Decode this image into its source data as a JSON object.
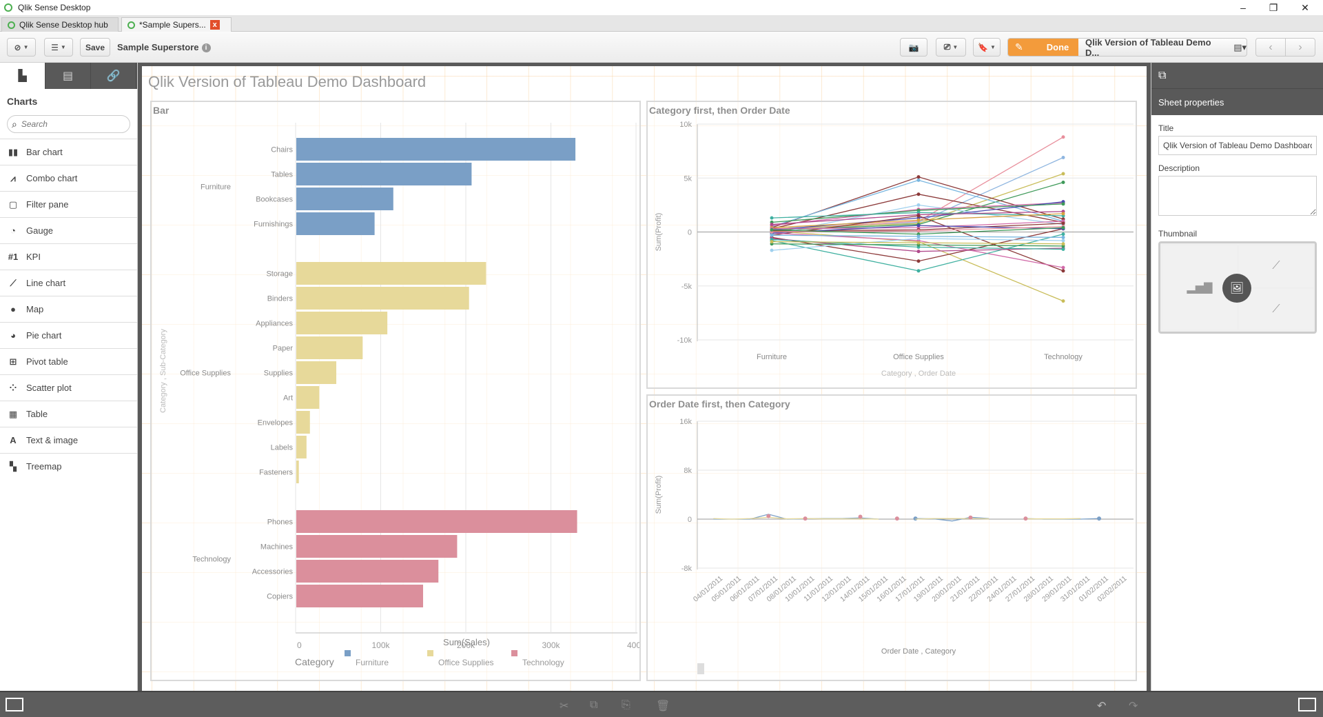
{
  "window": {
    "title": "Qlik Sense Desktop",
    "controls": {
      "minimize": "–",
      "restore": "❐",
      "close": "✕"
    }
  },
  "tabs": [
    {
      "label": "Qlik Sense Desktop hub",
      "active": false
    },
    {
      "label": "*Sample Supers...",
      "active": true,
      "close": "x"
    }
  ],
  "toolbar": {
    "navigation_icon": "compass-icon",
    "list_icon": "list-icon",
    "save_label": "Save",
    "app_name": "Sample Superstore",
    "info": "i",
    "snapshot_icon": "camera-icon",
    "present_icon": "presentation-icon",
    "bookmark_icon": "bookmark-icon",
    "done_label": "Done",
    "sheet_name": "Qlik Version of Tableau Demo D...",
    "prev": "‹",
    "next": "›"
  },
  "left_panel": {
    "tabs": [
      "charts-tab",
      "fields-tab",
      "master-items-tab"
    ],
    "heading": "Charts",
    "search_placeholder": "Search",
    "items": [
      {
        "label": "Bar chart",
        "icon": "▮▮"
      },
      {
        "label": "Combo chart",
        "icon": "⩘"
      },
      {
        "label": "Filter pane",
        "icon": "▢"
      },
      {
        "label": "Gauge",
        "icon": "◔"
      },
      {
        "label": "KPI",
        "icon": "#1"
      },
      {
        "label": "Line chart",
        "icon": "⟋"
      },
      {
        "label": "Map",
        "icon": "●"
      },
      {
        "label": "Pie chart",
        "icon": "◕"
      },
      {
        "label": "Pivot table",
        "icon": "⊞"
      },
      {
        "label": "Scatter plot",
        "icon": "⁘"
      },
      {
        "label": "Table",
        "icon": "▦"
      },
      {
        "label": "Text & image",
        "icon": "A"
      },
      {
        "label": "Treemap",
        "icon": "▚"
      }
    ]
  },
  "sheet": {
    "title": "Qlik Version of Tableau Demo Dashboard"
  },
  "right_panel": {
    "header": "Sheet properties",
    "title_label": "Title",
    "title_value": "Qlik Version of Tableau Demo Dashboard",
    "description_label": "Description",
    "description_value": "",
    "thumbnail_label": "Thumbnail"
  },
  "colors": {
    "furniture": "#7a9fc6",
    "office_supplies": "#e7d99a",
    "technology": "#db8f9c",
    "done": "#f39b3b",
    "panel_dark": "#595959"
  },
  "chart_data": [
    {
      "type": "bar",
      "title": "Bar",
      "orientation": "horizontal",
      "xlabel": "Sum(Sales)",
      "ylabel": "Category , Sub-Category",
      "xlim": [
        0,
        400000
      ],
      "xticks": [
        "0",
        "100k",
        "200k",
        "300k",
        "400k"
      ],
      "legend": {
        "title": "Category",
        "position": "bottom",
        "entries": [
          "Furniture",
          "Office Supplies",
          "Technology"
        ]
      },
      "groups": [
        {
          "category": "Furniture",
          "color": "#7a9fc6",
          "bars": [
            {
              "label": "Chairs",
              "value": 328000
            },
            {
              "label": "Tables",
              "value": 206000
            },
            {
              "label": "Bookcases",
              "value": 114000
            },
            {
              "label": "Furnishings",
              "value": 92000
            }
          ]
        },
        {
          "category": "Office Supplies",
          "color": "#e7d99a",
          "bars": [
            {
              "label": "Storage",
              "value": 223000
            },
            {
              "label": "Binders",
              "value": 203000
            },
            {
              "label": "Appliances",
              "value": 107000
            },
            {
              "label": "Paper",
              "value": 78000
            },
            {
              "label": "Supplies",
              "value": 47000
            },
            {
              "label": "Art",
              "value": 27000
            },
            {
              "label": "Envelopes",
              "value": 16000
            },
            {
              "label": "Labels",
              "value": 12000
            },
            {
              "label": "Fasteners",
              "value": 3000
            }
          ]
        },
        {
          "category": "Technology",
          "color": "#db8f9c",
          "bars": [
            {
              "label": "Phones",
              "value": 330000
            },
            {
              "label": "Machines",
              "value": 189000
            },
            {
              "label": "Accessories",
              "value": 167000
            },
            {
              "label": "Copiers",
              "value": 149000
            }
          ]
        }
      ]
    },
    {
      "type": "line",
      "title": "Category first, then Order Date",
      "xlabel": "Category , Order Date",
      "ylabel": "Sum(Profit)",
      "categories": [
        "Furniture",
        "Office Supplies",
        "Technology"
      ],
      "ylim": [
        -10000,
        10000
      ],
      "yticks": [
        "10k",
        "5k",
        "0",
        "-5k",
        "-10k"
      ],
      "series": [
        {
          "color": "#e88f9c",
          "values": [
            200,
            1000,
            8800
          ]
        },
        {
          "color": "#8fb6e0",
          "values": [
            100,
            900,
            6900
          ]
        },
        {
          "color": "#c9bd5a",
          "values": [
            300,
            800,
            5400
          ]
        },
        {
          "color": "#3f9a5a",
          "values": [
            150,
            700,
            4600
          ]
        },
        {
          "color": "#8c3a3a",
          "values": [
            400,
            5100,
            1200
          ]
        },
        {
          "color": "#78b6e0",
          "values": [
            500,
            4800,
            1000
          ]
        },
        {
          "color": "#8c3a3a",
          "values": [
            300,
            3500,
            900
          ]
        },
        {
          "color": "#9fd0ee",
          "values": [
            -200,
            2500,
            700
          ]
        },
        {
          "color": "#d16aa8",
          "values": [
            600,
            2100,
            2700
          ]
        },
        {
          "color": "#4a4ab0",
          "values": [
            200,
            1300,
            2800
          ]
        },
        {
          "color": "#3f9a5a",
          "values": [
            900,
            2000,
            2600
          ]
        },
        {
          "color": "#3fb0a0",
          "values": [
            1300,
            1800,
            1500
          ]
        },
        {
          "color": "#b04a8c",
          "values": [
            700,
            1600,
            1900
          ]
        },
        {
          "color": "#d8a040",
          "values": [
            400,
            1100,
            1700
          ]
        },
        {
          "color": "#8c3a3a",
          "values": [
            -300,
            1500,
            -3600
          ]
        },
        {
          "color": "#c9bd5a",
          "values": [
            100,
            -900,
            -6400
          ]
        },
        {
          "color": "#d16aa8",
          "values": [
            -100,
            -800,
            -3300
          ]
        },
        {
          "color": "#3fb0a0",
          "values": [
            -800,
            -3600,
            -200
          ]
        },
        {
          "color": "#8c3a3a",
          "values": [
            -500,
            -2700,
            300
          ]
        },
        {
          "color": "#b04a8c",
          "values": [
            -600,
            -1800,
            -1500
          ]
        },
        {
          "color": "#3fb0a0",
          "values": [
            -700,
            -1400,
            -1600
          ]
        },
        {
          "color": "#9fd0ee",
          "values": [
            -1700,
            -600,
            -800
          ]
        },
        {
          "color": "#3f9a5a",
          "values": [
            -1100,
            -1200,
            -1300
          ]
        },
        {
          "color": "#c9bd5a",
          "values": [
            -900,
            -1000,
            -1100
          ]
        },
        {
          "color": "#d16aa8",
          "values": [
            300,
            400,
            1000
          ]
        },
        {
          "color": "#8c3a3a",
          "values": [
            100,
            200,
            800
          ]
        },
        {
          "color": "#4a4ab0",
          "values": [
            -100,
            600,
            300
          ]
        },
        {
          "color": "#e88f9c",
          "values": [
            0,
            100,
            500
          ]
        },
        {
          "color": "#3f9a5a",
          "values": [
            200,
            -200,
            400
          ]
        },
        {
          "color": "#78b6e0",
          "values": [
            -300,
            -400,
            -500
          ]
        }
      ]
    },
    {
      "type": "line",
      "title": "Order Date first, then Category",
      "xlabel": "Order Date , Category",
      "ylabel": "Sum(Profit)",
      "ylim": [
        -8000,
        16000
      ],
      "yticks": [
        "16k",
        "8k",
        "0",
        "-8k"
      ],
      "categories": [
        "04/01/2011",
        "05/01/2011",
        "06/01/2011",
        "07/01/2011",
        "08/01/2011",
        "10/01/2011",
        "11/01/2011",
        "12/01/2011",
        "14/01/2011",
        "15/01/2011",
        "16/01/2011",
        "17/01/2011",
        "19/01/2011",
        "20/01/2011",
        "21/01/2011",
        "22/01/2011",
        "24/01/2011",
        "27/01/2011",
        "28/01/2011",
        "29/01/2011",
        "31/01/2011",
        "01/02/2011",
        "02/02/2011"
      ],
      "series": [
        {
          "name": "Furniture",
          "color": "#7a9fc6",
          "values": [
            0,
            0,
            0,
            800,
            0,
            50,
            100,
            100,
            200,
            0,
            null,
            100,
            50,
            -300,
            300,
            100,
            null,
            100,
            0,
            0,
            0,
            100,
            null
          ]
        },
        {
          "name": "Office Supplies",
          "color": "#e7d99a",
          "values": [
            100,
            0,
            100,
            300,
            50,
            100,
            50,
            50,
            50,
            0,
            null,
            0,
            100,
            100,
            100,
            50,
            null,
            50,
            50,
            50,
            100,
            null,
            null
          ]
        },
        {
          "name": "Technology",
          "color": "#db8f9c",
          "values": [
            null,
            null,
            null,
            500,
            null,
            100,
            null,
            null,
            400,
            null,
            100,
            null,
            null,
            null,
            250,
            null,
            null,
            100,
            null,
            null,
            null,
            null,
            null
          ]
        }
      ]
    }
  ]
}
